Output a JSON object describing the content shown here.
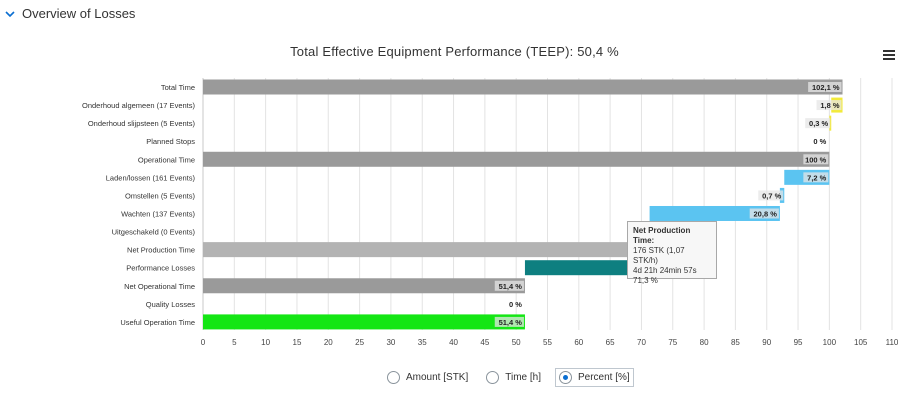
{
  "header": {
    "section_title": "Overview of Losses",
    "collapse_icon": "chevron-down-icon",
    "menu_icon": "hamburger-menu-icon"
  },
  "chart_data": {
    "type": "bar",
    "orientation": "horizontal-waterfall",
    "title": "Total Effective Equipment Performance (TEEP): 50,4 %",
    "xlabel": "",
    "ylabel": "",
    "xlim": [
      0,
      110
    ],
    "xticks": [
      0,
      5,
      10,
      15,
      20,
      25,
      30,
      35,
      40,
      45,
      50,
      55,
      60,
      65,
      70,
      75,
      80,
      85,
      90,
      95,
      100,
      105,
      110
    ],
    "grid": true,
    "bars": [
      {
        "category": "Total Time",
        "start": 0,
        "end": 102.1,
        "label": "102,1 %",
        "color": "#9a9a9a"
      },
      {
        "category": "Onderhoud algemeen (17 Events)",
        "start": 100.3,
        "end": 102.1,
        "label": "1,8 %",
        "color": "#f2ea3a"
      },
      {
        "category": "Onderhoud slijpsteen (5 Events)",
        "start": 100,
        "end": 100.3,
        "label": "0,3 %",
        "color": "#f2ea3a"
      },
      {
        "category": "Planned Stops",
        "start": 100,
        "end": 100,
        "label": "0 %",
        "color": "#9a9a9a"
      },
      {
        "category": "Operational Time",
        "start": 0,
        "end": 100,
        "label": "100 %",
        "color": "#9a9a9a"
      },
      {
        "category": "Laden/lossen (161 Events)",
        "start": 92.8,
        "end": 100,
        "label": "7,2 %",
        "color": "#5bc4f1"
      },
      {
        "category": "Omstellen (5 Events)",
        "start": 92.1,
        "end": 92.8,
        "label": "0,7 %",
        "color": "#5bc4f1"
      },
      {
        "category": "Wachten (137 Events)",
        "start": 71.3,
        "end": 92.1,
        "label": "20,8 %",
        "color": "#5bc4f1"
      },
      {
        "category": "Uitgeschakeld (0 Events)",
        "start": 71.3,
        "end": 71.3,
        "label": "",
        "color": "#5bc4f1"
      },
      {
        "category": "Net Production Time",
        "start": 0,
        "end": 71.3,
        "label": "",
        "color": "#b3b3b3"
      },
      {
        "category": "Performance Losses",
        "start": 51.4,
        "end": 71.3,
        "label": "",
        "color": "#0e7f80"
      },
      {
        "category": "Net Operational Time",
        "start": 0,
        "end": 51.4,
        "label": "51,4 %",
        "color": "#9a9a9a"
      },
      {
        "category": "Quality Losses",
        "start": 51.4,
        "end": 51.4,
        "label": "0 %",
        "color": "#9a9a9a"
      },
      {
        "category": "Useful Operation Time",
        "start": 0,
        "end": 51.4,
        "label": "51,4 %",
        "color": "#14e614"
      }
    ],
    "tooltip": {
      "title": "Net Production Time:",
      "line1": "176 STK (1,07 STK/h)",
      "line2": "4d 21h 24min 57s",
      "line3": "71,3 %"
    }
  },
  "legend": {
    "options": [
      {
        "label": "Amount [STK]",
        "selected": false
      },
      {
        "label": "Time [h]",
        "selected": false
      },
      {
        "label": "Percent [%]",
        "selected": true
      }
    ]
  }
}
